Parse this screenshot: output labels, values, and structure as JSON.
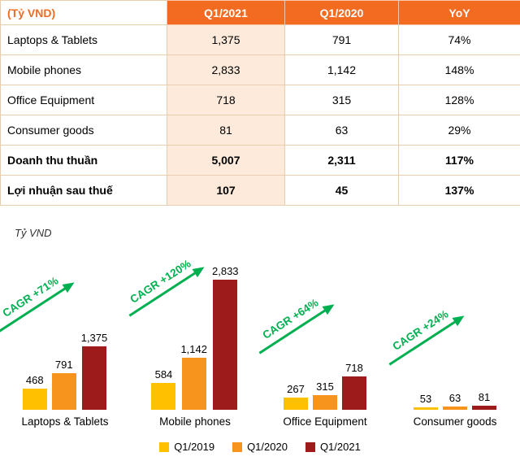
{
  "table": {
    "headers": [
      "(Tỷ VND)",
      "Q1/2021",
      "Q1/2020",
      "YoY"
    ],
    "rows": [
      {
        "label": "Laptops & Tablets",
        "values": [
          "1,375",
          "791",
          "74%"
        ],
        "bold": false
      },
      {
        "label": "Mobile phones",
        "values": [
          "2,833",
          "1,142",
          "148%"
        ],
        "bold": false
      },
      {
        "label": "Office Equipment",
        "values": [
          "718",
          "315",
          "128%"
        ],
        "bold": false
      },
      {
        "label": "Consumer goods",
        "values": [
          "81",
          "63",
          "29%"
        ],
        "bold": false
      },
      {
        "label": "Doanh thu thuần",
        "values": [
          "5,007",
          "2,311",
          "117%"
        ],
        "bold": true
      },
      {
        "label": "Lợi nhuận sau thuế",
        "values": [
          "107",
          "45",
          "137%"
        ],
        "bold": true
      }
    ]
  },
  "chart_data": {
    "type": "bar",
    "title": "Tỷ VND",
    "categories": [
      "Laptops & Tablets",
      "Mobile phones",
      "Office Equipment",
      "Consumer goods"
    ],
    "series": [
      {
        "name": "Q1/2019",
        "color": "#FFC000",
        "values": [
          468,
          584,
          267,
          53
        ]
      },
      {
        "name": "Q1/2020",
        "color": "#F7941D",
        "values": [
          791,
          1142,
          315,
          63
        ]
      },
      {
        "name": "Q1/2021",
        "color": "#9E1B1B",
        "values": [
          1375,
          2833,
          718,
          81
        ]
      }
    ],
    "annotations": [
      "CAGR +71%",
      "CAGR +120%",
      "CAGR +64%",
      "CAGR +24%"
    ],
    "annotation_color": "#00B050",
    "ylim": [
      0,
      2833
    ],
    "grid": false,
    "legend_position": "bottom"
  },
  "colors": {
    "header_bg": "#F26B21",
    "header_text": "#FFFFFF",
    "header_label_text": "#F26B21",
    "highlight_col_bg": "#FDEADA",
    "table_border": "#E9CDAF",
    "cagr_green": "#00B050"
  }
}
